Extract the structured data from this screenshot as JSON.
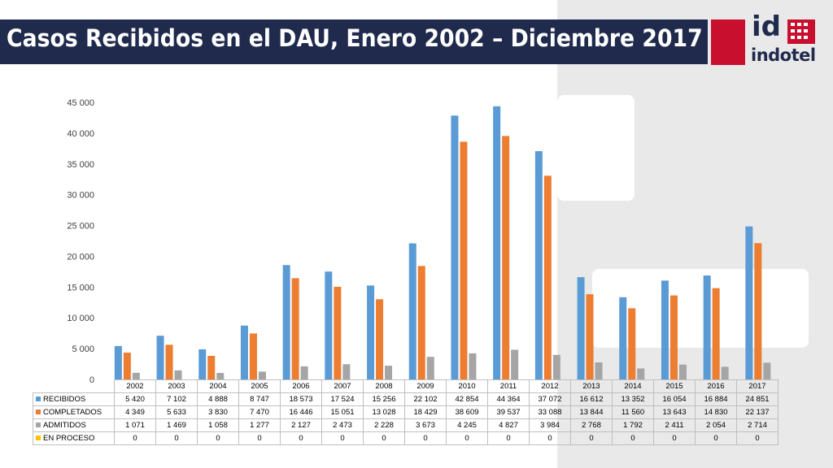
{
  "title": "Casos Recibidos en el DAU, Enero 2002 – Diciembre 2017",
  "logo": {
    "id_text": "id",
    "name": "indotel",
    "red": "#c8102e",
    "navy": "#1f2a4d"
  },
  "chart_data": {
    "type": "bar",
    "categories": [
      "2002",
      "2003",
      "2004",
      "2005",
      "2006",
      "2007",
      "2008",
      "2009",
      "2010",
      "2011",
      "2012",
      "2013",
      "2014",
      "2015",
      "2016",
      "2017"
    ],
    "ylim": [
      0,
      45000
    ],
    "yticks": [
      0,
      5000,
      10000,
      15000,
      20000,
      25000,
      30000,
      35000,
      40000,
      45000
    ],
    "ytick_labels": [
      "0",
      "5 000",
      "10 000",
      "15 000",
      "20 000",
      "25 000",
      "30 000",
      "35 000",
      "40 000",
      "45 000"
    ],
    "grid": false,
    "legend": "table",
    "series": [
      {
        "name": "RECIBIDOS",
        "color": "#5b9bd5",
        "values": [
          5420,
          7102,
          4888,
          8747,
          18573,
          17524,
          15256,
          22102,
          42854,
          44364,
          37072,
          16612,
          13352,
          16054,
          16884,
          24851
        ],
        "labels": [
          "5 420",
          "7 102",
          "4 888",
          "8 747",
          "18 573",
          "17 524",
          "15 256",
          "22 102",
          "42 854",
          "44 364",
          "37 072",
          "16 612",
          "13 352",
          "16 054",
          "16 884",
          "24 851"
        ]
      },
      {
        "name": "COMPLETADOS",
        "color": "#ed7d31",
        "values": [
          4349,
          5633,
          3830,
          7470,
          16446,
          15051,
          13028,
          18429,
          38609,
          39537,
          33088,
          13844,
          11560,
          13643,
          14830,
          22137
        ],
        "labels": [
          "4 349",
          "5 633",
          "3 830",
          "7 470",
          "16 446",
          "15 051",
          "13 028",
          "18 429",
          "38 609",
          "39 537",
          "33 088",
          "13 844",
          "11 560",
          "13 643",
          "14 830",
          "22 137"
        ]
      },
      {
        "name": "ADMITIDOS",
        "color": "#a5a5a5",
        "values": [
          1071,
          1469,
          1058,
          1277,
          2127,
          2473,
          2228,
          3673,
          4245,
          4827,
          3984,
          2768,
          1792,
          2411,
          2054,
          2714
        ],
        "labels": [
          "1 071",
          "1 469",
          "1 058",
          "1 277",
          "2 127",
          "2 473",
          "2 228",
          "3 673",
          "4 245",
          "4 827",
          "3 984",
          "2 768",
          "1 792",
          "2 411",
          "2 054",
          "2 714"
        ]
      },
      {
        "name": "EN PROCESO",
        "color": "#ffc000",
        "values": [
          0,
          0,
          0,
          0,
          0,
          0,
          0,
          0,
          0,
          0,
          0,
          0,
          0,
          0,
          0,
          0
        ],
        "labels": [
          "0",
          "0",
          "0",
          "0",
          "0",
          "0",
          "0",
          "0",
          "0",
          "0",
          "0",
          "0",
          "0",
          "0",
          "0",
          "0"
        ]
      }
    ]
  }
}
